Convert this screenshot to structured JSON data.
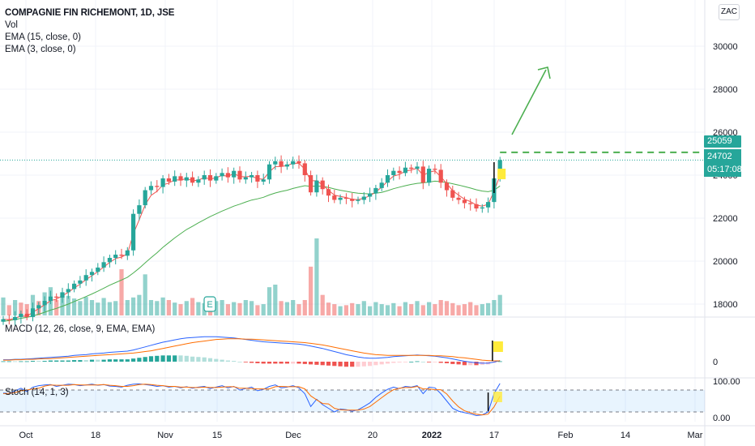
{
  "header": {
    "title": "COMPAGNIE FIN RICHEMONT, 1D, JSE",
    "indicators": [
      "Vol",
      "EMA (15, close, 0)",
      "EMA (3, close, 0)"
    ],
    "currency": "ZAC"
  },
  "macd": {
    "label": "MACD (12, 26, close, 9, EMA, EMA)",
    "ticks": [
      "0"
    ]
  },
  "stoch": {
    "label": "Stoch (14, 1, 3)",
    "ticks": [
      "100.00",
      "0.00"
    ]
  },
  "price_tags": {
    "target": "25059",
    "last": "24702",
    "countdown": "05:17:08"
  },
  "colors": {
    "up": "#26a69a",
    "down": "#ef5350",
    "ema_fast": "#ef5350",
    "ema_slow": "#4caf50",
    "arrow": "#4caf50"
  },
  "chart_data": {
    "type": "candlestick",
    "title": "COMPAGNIE FIN RICHEMONT, 1D, JSE",
    "y_ticks": [
      18000,
      20000,
      22000,
      24000,
      26000,
      28000,
      30000
    ],
    "y_tick_labels": [
      "18000",
      "20000",
      "22000",
      "24000",
      "26000",
      "28000",
      "30000"
    ],
    "ylim": [
      17400,
      31600
    ],
    "x_tick_labels": [
      "Oct",
      "18",
      "Nov",
      "15",
      "Dec",
      "20",
      "2022",
      "17",
      "Feb",
      "14",
      "Mar"
    ],
    "target_level": 25059,
    "last_price": 24702,
    "closes": [
      17300,
      17250,
      17400,
      17550,
      17400,
      17800,
      17950,
      18150,
      18350,
      18300,
      18550,
      18700,
      18950,
      19100,
      19350,
      19500,
      19700,
      19950,
      20150,
      20300,
      20250,
      20500,
      22200,
      22600,
      23300,
      23500,
      23450,
      23850,
      23700,
      23950,
      23750,
      23900,
      23650,
      23800,
      24000,
      23750,
      23950,
      24100,
      23900,
      24200,
      23800,
      23900,
      24000,
      23700,
      23800,
      24500,
      24650,
      24400,
      24500,
      24650,
      24550,
      24000,
      23200,
      23750,
      23350,
      23050,
      22850,
      22950,
      22900,
      22800,
      22850,
      23000,
      23150,
      23400,
      23650,
      24000,
      24200,
      24100,
      24350,
      24300,
      24400,
      23650,
      24300,
      24250,
      23650,
      23300,
      22950,
      22850,
      22700,
      22650,
      22450,
      22500,
      22750,
      23850,
      24702
    ],
    "ema15": [
      17200,
      17230,
      17280,
      17340,
      17380,
      17450,
      17530,
      17620,
      17720,
      17800,
      17900,
      18000,
      18120,
      18230,
      18350,
      18470,
      18600,
      18740,
      18880,
      19000,
      19120,
      19250,
      19450,
      19670,
      19920,
      20160,
      20390,
      20640,
      20860,
      21080,
      21280,
      21470,
      21620,
      21780,
      21930,
      22070,
      22200,
      22330,
      22440,
      22560,
      22650,
      22750,
      22840,
      22900,
      22970,
      23080,
      23170,
      23240,
      23300,
      23380,
      23450,
      23510,
      23480,
      23490,
      23480,
      23430,
      23360,
      23300,
      23250,
      23200,
      23160,
      23140,
      23130,
      23160,
      23200,
      23280,
      23370,
      23440,
      23510,
      23570,
      23620,
      23640,
      23680,
      23720,
      23700,
      23660,
      23600,
      23540,
      23470,
      23400,
      23320,
      23260,
      23230,
      23300,
      23500
    ],
    "ema3": [
      17300,
      17280,
      17340,
      17450,
      17430,
      17620,
      17790,
      17970,
      18160,
      18230,
      18390,
      18550,
      18750,
      18930,
      19140,
      19320,
      19510,
      19730,
      19940,
      20120,
      20190,
      20340,
      21270,
      21930,
      22620,
      23060,
      23250,
      23550,
      23630,
      23790,
      23770,
      23840,
      23740,
      23770,
      23890,
      23820,
      23880,
      23990,
      23950,
      24070,
      23940,
      23920,
      23960,
      23830,
      23810,
      24150,
      24400,
      24400,
      24450,
      24550,
      24550,
      24280,
      23740,
      23740,
      23550,
      23300,
      23070,
      23010,
      22960,
      22880,
      22860,
      22930,
      23040,
      23220,
      23440,
      23720,
      23960,
      24030,
      24190,
      24240,
      24320,
      23990,
      24140,
      24200,
      23920,
      23610,
      23280,
      23070,
      22880,
      22770,
      22610,
      22560,
      22650,
      23250,
      23980
    ],
    "volume_up": [
      1,
      0,
      1,
      0,
      0,
      1,
      0,
      1,
      1,
      0,
      1,
      1,
      1,
      1,
      1,
      1,
      1,
      1,
      1,
      1,
      0,
      1,
      1,
      1,
      1,
      1,
      1,
      1,
      0,
      1,
      0,
      1,
      0,
      1,
      1,
      0,
      1,
      1,
      0,
      1,
      0,
      1,
      1,
      0,
      1,
      1,
      1,
      0,
      1,
      1,
      0,
      0,
      0,
      1,
      0,
      0,
      0,
      1,
      0,
      0,
      1,
      1,
      1,
      1,
      1,
      1,
      1,
      0,
      1,
      0,
      1,
      0,
      1,
      0,
      0,
      0,
      0,
      0,
      0,
      0,
      0,
      1,
      1,
      1,
      1
    ],
    "volume": [
      35,
      20,
      30,
      25,
      22,
      40,
      28,
      45,
      55,
      30,
      42,
      38,
      33,
      28,
      36,
      30,
      25,
      34,
      26,
      28,
      90,
      30,
      35,
      40,
      80,
      30,
      28,
      35,
      30,
      25,
      22,
      28,
      34,
      26,
      24,
      32,
      28,
      30,
      22,
      26,
      24,
      30,
      28,
      20,
      22,
      55,
      60,
      28,
      26,
      30,
      22,
      30,
      95,
      150,
      40,
      25,
      22,
      18,
      20,
      24,
      22,
      28,
      18,
      26,
      22,
      20,
      24,
      18,
      26,
      22,
      28,
      20,
      26,
      22,
      30,
      28,
      24,
      20,
      22,
      26,
      20,
      22,
      24,
      30,
      40
    ],
    "macd_line": [
      0.05,
      0.05,
      0.06,
      0.06,
      0.07,
      0.08,
      0.09,
      0.1,
      0.11,
      0.12,
      0.13,
      0.14,
      0.16,
      0.17,
      0.18,
      0.2,
      0.21,
      0.22,
      0.24,
      0.25,
      0.26,
      0.27,
      0.3,
      0.34,
      0.38,
      0.42,
      0.46,
      0.5,
      0.53,
      0.56,
      0.59,
      0.61,
      0.62,
      0.63,
      0.64,
      0.64,
      0.64,
      0.63,
      0.62,
      0.61,
      0.59,
      0.57,
      0.55,
      0.53,
      0.51,
      0.5,
      0.49,
      0.48,
      0.47,
      0.46,
      0.45,
      0.43,
      0.4,
      0.37,
      0.34,
      0.3,
      0.26,
      0.22,
      0.18,
      0.15,
      0.12,
      0.1,
      0.09,
      0.09,
      0.1,
      0.11,
      0.13,
      0.14,
      0.15,
      0.16,
      0.17,
      0.16,
      0.15,
      0.14,
      0.12,
      0.1,
      0.07,
      0.04,
      0.01,
      -0.01,
      -0.03,
      -0.04,
      -0.04,
      -0.01,
      0.03
    ],
    "signal_line": [
      0.04,
      0.04,
      0.05,
      0.05,
      0.06,
      0.06,
      0.07,
      0.08,
      0.08,
      0.09,
      0.1,
      0.11,
      0.12,
      0.13,
      0.14,
      0.15,
      0.16,
      0.17,
      0.18,
      0.19,
      0.2,
      0.21,
      0.22,
      0.24,
      0.26,
      0.28,
      0.31,
      0.34,
      0.37,
      0.4,
      0.43,
      0.46,
      0.49,
      0.51,
      0.53,
      0.55,
      0.57,
      0.58,
      0.59,
      0.59,
      0.59,
      0.58,
      0.58,
      0.57,
      0.56,
      0.55,
      0.54,
      0.53,
      0.52,
      0.51,
      0.5,
      0.49,
      0.47,
      0.45,
      0.43,
      0.4,
      0.37,
      0.34,
      0.31,
      0.28,
      0.25,
      0.22,
      0.2,
      0.18,
      0.17,
      0.16,
      0.16,
      0.16,
      0.16,
      0.16,
      0.16,
      0.16,
      0.16,
      0.15,
      0.15,
      0.14,
      0.13,
      0.11,
      0.1,
      0.08,
      0.06,
      0.04,
      0.03,
      0.02,
      0.02
    ],
    "stoch_k": [
      72,
      70,
      78,
      85,
      76,
      88,
      92,
      94,
      95,
      90,
      93,
      96,
      95,
      92,
      94,
      96,
      93,
      95,
      91,
      90,
      88,
      93,
      96,
      97,
      95,
      93,
      90,
      92,
      88,
      90,
      86,
      89,
      85,
      88,
      90,
      84,
      88,
      92,
      86,
      90,
      80,
      84,
      88,
      78,
      82,
      90,
      94,
      86,
      88,
      92,
      86,
      70,
      35,
      55,
      40,
      30,
      20,
      28,
      26,
      22,
      26,
      35,
      45,
      60,
      72,
      82,
      88,
      84,
      90,
      88,
      92,
      70,
      88,
      86,
      70,
      50,
      30,
      22,
      18,
      15,
      10,
      12,
      20,
      70,
      98
    ],
    "stoch_d": [
      70,
      71,
      73,
      78,
      80,
      83,
      85,
      91,
      94,
      93,
      93,
      93,
      95,
      94,
      94,
      94,
      94,
      95,
      93,
      92,
      90,
      90,
      92,
      95,
      96,
      95,
      93,
      92,
      90,
      90,
      88,
      88,
      87,
      87,
      88,
      87,
      87,
      88,
      89,
      89,
      85,
      85,
      84,
      83,
      83,
      83,
      89,
      90,
      89,
      89,
      89,
      83,
      64,
      53,
      43,
      42,
      30,
      26,
      25,
      25,
      25,
      28,
      35,
      47,
      59,
      71,
      81,
      85,
      87,
      87,
      90,
      83,
      83,
      81,
      81,
      69,
      50,
      34,
      23,
      18,
      14,
      12,
      14,
      34,
      63
    ]
  }
}
